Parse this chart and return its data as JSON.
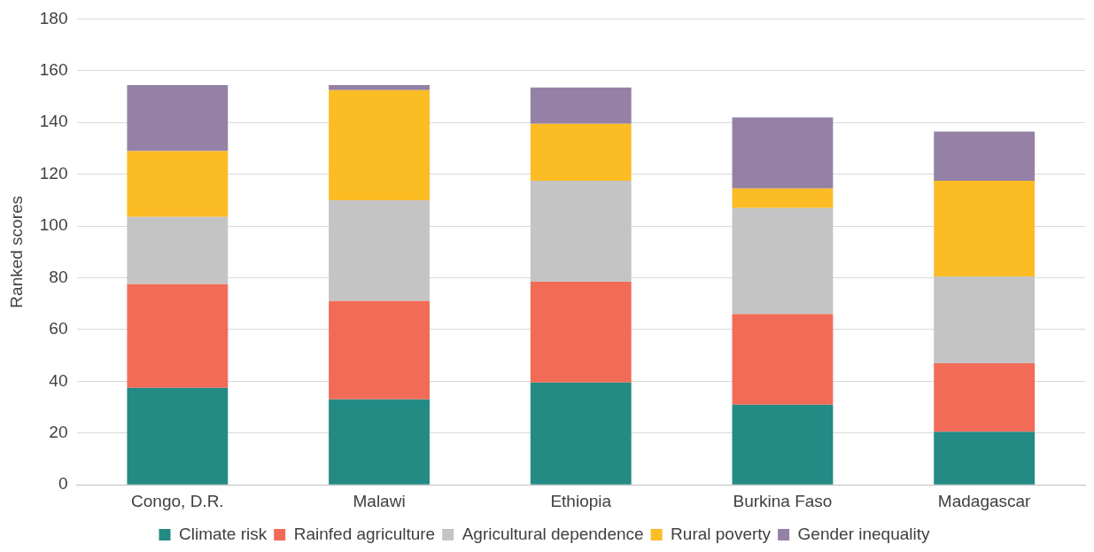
{
  "chart_data": {
    "type": "bar",
    "ylabel": "Ranked scores",
    "categories": [
      "Congo, D.R.",
      "Malawi",
      "Ethiopia",
      "Burkina Faso",
      "Madagascar"
    ],
    "stacked": true,
    "ylim": [
      0,
      180
    ],
    "yticks": [
      0,
      20,
      40,
      60,
      80,
      100,
      120,
      140,
      160,
      180
    ],
    "grid": "y",
    "legend": "bottom",
    "series": [
      {
        "name": "Climate risk",
        "color": "#238a84",
        "values": [
          37.5,
          33,
          39.5,
          31,
          20.5
        ]
      },
      {
        "name": "Rainfed agriculture",
        "color": "#f26b56",
        "values": [
          40,
          38,
          39,
          35,
          26.5
        ]
      },
      {
        "name": "Agricultural dependence",
        "color": "#c4c4c4",
        "values": [
          26,
          39,
          39,
          41,
          33.5
        ]
      },
      {
        "name": "Rural poverty",
        "color": "#fbbc24",
        "values": [
          25.5,
          42.5,
          22,
          7.5,
          37
        ]
      },
      {
        "name": "Gender inequality",
        "color": "#9581a5",
        "values": [
          25.5,
          2,
          14,
          27.5,
          19
        ]
      }
    ]
  }
}
